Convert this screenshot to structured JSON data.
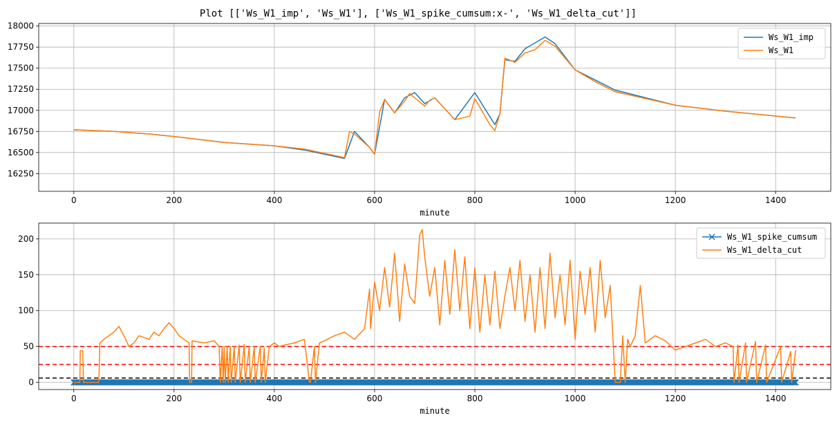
{
  "figure": {
    "title": "Plot [['Ws_W1_imp', 'Ws_W1'], ['Ws_W1_spike_cumsum:x-', 'Ws_W1_delta_cut']]"
  },
  "chart_data": [
    {
      "type": "line",
      "xlabel": "minute",
      "ylabel": "",
      "xlim": [
        -70,
        1510
      ],
      "ylim": [
        16040,
        18030
      ],
      "xticks": [
        0,
        200,
        400,
        600,
        800,
        1000,
        1200,
        1400
      ],
      "yticks": [
        16250,
        16500,
        16750,
        17000,
        17250,
        17500,
        17750,
        18000
      ],
      "grid": true,
      "legend_position": "top-right",
      "series": [
        {
          "name": "Ws_W1_imp",
          "color": "#1f77b4",
          "x": [
            0,
            80,
            150,
            200,
            300,
            400,
            460,
            540,
            560,
            590,
            600,
            620,
            640,
            660,
            680,
            700,
            720,
            760,
            800,
            840,
            850,
            860,
            880,
            900,
            940,
            960,
            1000,
            1040,
            1080,
            1200,
            1300,
            1440
          ],
          "y": [
            16770,
            16750,
            16720,
            16690,
            16620,
            16580,
            16530,
            16430,
            16750,
            16560,
            16480,
            17130,
            16970,
            17150,
            17210,
            17080,
            17150,
            16890,
            17210,
            16830,
            16960,
            17600,
            17580,
            17730,
            17870,
            17790,
            17480,
            17360,
            17240,
            17060,
            16990,
            16910
          ]
        },
        {
          "name": "Ws_W1",
          "color": "#ff7f0e",
          "x": [
            0,
            80,
            150,
            200,
            300,
            400,
            460,
            540,
            550,
            560,
            590,
            600,
            610,
            620,
            640,
            660,
            670,
            700,
            710,
            720,
            760,
            790,
            800,
            830,
            840,
            850,
            860,
            880,
            900,
            920,
            940,
            960,
            1000,
            1040,
            1080,
            1200,
            1300,
            1440
          ],
          "y": [
            16770,
            16750,
            16720,
            16690,
            16620,
            16580,
            16540,
            16440,
            16750,
            16720,
            16560,
            16480,
            16980,
            17130,
            16970,
            17110,
            17200,
            17050,
            17120,
            17150,
            16890,
            16930,
            17140,
            16830,
            16760,
            16960,
            17620,
            17570,
            17680,
            17720,
            17830,
            17760,
            17480,
            17340,
            17220,
            17060,
            16990,
            16910
          ]
        }
      ]
    },
    {
      "type": "line",
      "xlabel": "minute",
      "ylabel": "",
      "xlim": [
        -70,
        1510
      ],
      "ylim": [
        -10,
        222
      ],
      "xticks": [
        0,
        200,
        400,
        600,
        800,
        1000,
        1200,
        1400
      ],
      "yticks": [
        0,
        50,
        100,
        150,
        200
      ],
      "grid": true,
      "legend_position": "top-right",
      "hlines": [
        {
          "y": 50,
          "color": "#ff0000",
          "style": "dashed"
        },
        {
          "y": 25,
          "color": "#ff0000",
          "style": "dashed"
        },
        {
          "y": 6,
          "color": "#000000",
          "style": "dashed"
        }
      ],
      "series": [
        {
          "name": "Ws_W1_spike_cumsum",
          "color": "#1f77b4",
          "marker": "x",
          "x_range": [
            0,
            1440
          ],
          "value": 0
        },
        {
          "name": "Ws_W1_delta_cut",
          "color": "#ff7f0e",
          "x": [
            0,
            12,
            13,
            18,
            19,
            50,
            52,
            60,
            70,
            80,
            90,
            100,
            110,
            120,
            130,
            150,
            160,
            170,
            180,
            190,
            200,
            210,
            220,
            230,
            231,
            235,
            236,
            260,
            280,
            290,
            292,
            296,
            298,
            300,
            302,
            306,
            308,
            312,
            314,
            320,
            322,
            330,
            332,
            340,
            342,
            350,
            352,
            360,
            362,
            372,
            374,
            380,
            382,
            390,
            400,
            410,
            420,
            440,
            460,
            470,
            472,
            480,
            482,
            490,
            500,
            520,
            540,
            560,
            580,
            590,
            592,
            600,
            610,
            620,
            630,
            640,
            650,
            660,
            670,
            680,
            690,
            695,
            700,
            710,
            720,
            730,
            740,
            750,
            760,
            770,
            780,
            790,
            800,
            810,
            820,
            830,
            840,
            850,
            860,
            870,
            880,
            890,
            900,
            910,
            920,
            930,
            940,
            950,
            960,
            970,
            980,
            990,
            1000,
            1010,
            1020,
            1030,
            1040,
            1050,
            1060,
            1070,
            1080,
            1090,
            1095,
            1100,
            1105,
            1110,
            1120,
            1130,
            1140,
            1160,
            1180,
            1200,
            1220,
            1240,
            1260,
            1280,
            1300,
            1315,
            1317,
            1325,
            1327,
            1340,
            1342,
            1360,
            1362,
            1380,
            1382,
            1410,
            1412,
            1430,
            1432,
            1440
          ],
          "y": [
            0,
            0,
            44,
            44,
            0,
            0,
            55,
            60,
            65,
            70,
            78,
            65,
            50,
            55,
            65,
            60,
            70,
            65,
            75,
            83,
            75,
            65,
            60,
            55,
            0,
            0,
            58,
            55,
            58,
            50,
            0,
            50,
            0,
            50,
            0,
            50,
            0,
            50,
            0,
            50,
            0,
            52,
            0,
            53,
            0,
            50,
            0,
            50,
            0,
            50,
            0,
            48,
            0,
            50,
            55,
            50,
            52,
            55,
            60,
            0,
            0,
            50,
            0,
            55,
            58,
            65,
            70,
            60,
            75,
            130,
            75,
            140,
            100,
            160,
            105,
            180,
            85,
            165,
            120,
            110,
            205,
            213,
            175,
            120,
            160,
            80,
            170,
            95,
            185,
            100,
            175,
            75,
            160,
            70,
            150,
            80,
            155,
            75,
            120,
            160,
            100,
            170,
            85,
            150,
            70,
            160,
            75,
            180,
            90,
            150,
            80,
            170,
            60,
            155,
            95,
            160,
            70,
            170,
            90,
            135,
            0,
            0,
            65,
            0,
            60,
            50,
            65,
            135,
            55,
            65,
            58,
            45,
            50,
            55,
            60,
            50,
            55,
            50,
            0,
            52,
            0,
            55,
            0,
            57,
            0,
            52,
            0,
            50,
            0,
            43,
            0,
            45
          ]
        }
      ]
    }
  ]
}
